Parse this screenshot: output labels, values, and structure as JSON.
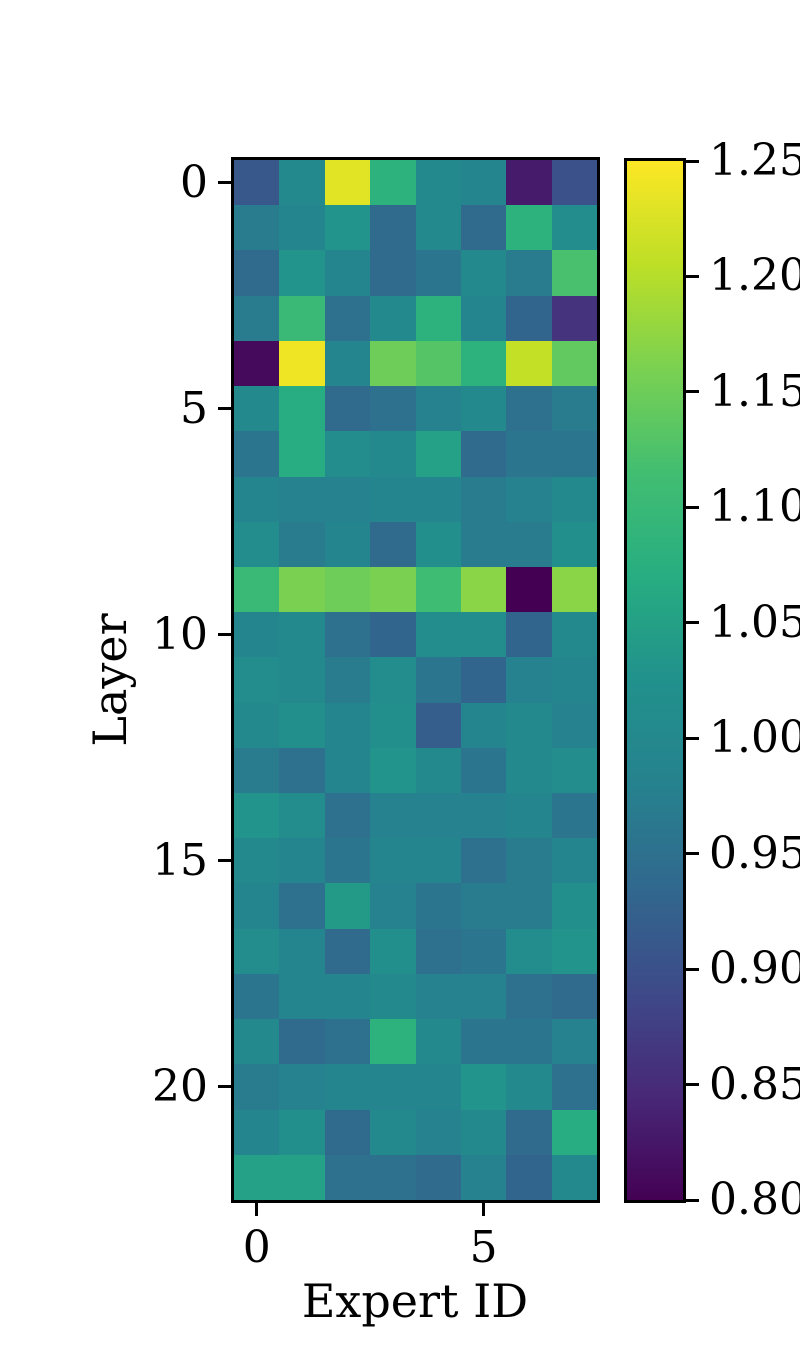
{
  "chart_data": {
    "type": "heatmap",
    "title": "",
    "xlabel": "Expert ID",
    "ylabel": "Layer",
    "n_rows": 23,
    "n_cols": 8,
    "x_range": [
      0,
      7
    ],
    "y_range": [
      0,
      22
    ],
    "colormap": "viridis",
    "vmin": 0.8,
    "vmax": 1.25,
    "grid": false,
    "legend_position": "colorbar-right",
    "xticks": [
      {
        "v": 0,
        "label": "0"
      },
      {
        "v": 5,
        "label": "5"
      }
    ],
    "yticks": [
      {
        "v": 0,
        "label": "0"
      },
      {
        "v": 5,
        "label": "5"
      },
      {
        "v": 10,
        "label": "10"
      },
      {
        "v": 15,
        "label": "15"
      },
      {
        "v": 20,
        "label": "20"
      }
    ],
    "colorbar_ticks": [
      {
        "v": 1.25,
        "label": "1.25"
      },
      {
        "v": 1.2,
        "label": "1.20"
      },
      {
        "v": 1.15,
        "label": "1.15"
      },
      {
        "v": 1.1,
        "label": "1.10"
      },
      {
        "v": 1.05,
        "label": "1.05"
      },
      {
        "v": 1.0,
        "label": "1.00"
      },
      {
        "v": 0.95,
        "label": "0.95"
      },
      {
        "v": 0.9,
        "label": "0.90"
      },
      {
        "v": 0.85,
        "label": "0.85"
      },
      {
        "v": 0.8,
        "label": "0.80"
      }
    ],
    "values": [
      [
        0.91,
        1.0,
        1.23,
        1.08,
        1.0,
        0.99,
        0.83,
        0.9
      ],
      [
        0.97,
        0.99,
        1.03,
        0.94,
        1.0,
        0.94,
        1.08,
        1.01
      ],
      [
        0.94,
        1.03,
        0.99,
        0.94,
        0.96,
        1.0,
        0.97,
        1.12
      ],
      [
        0.97,
        1.1,
        0.95,
        1.0,
        1.08,
        0.99,
        0.93,
        0.86
      ],
      [
        0.81,
        1.24,
        0.99,
        1.15,
        1.13,
        1.08,
        1.21,
        1.14
      ],
      [
        1.0,
        1.07,
        0.94,
        0.95,
        0.98,
        1.0,
        0.95,
        0.97
      ],
      [
        0.96,
        1.07,
        1.01,
        1.0,
        1.05,
        0.94,
        0.96,
        0.96
      ],
      [
        0.99,
        0.98,
        0.98,
        0.99,
        0.99,
        0.97,
        0.98,
        1.0
      ],
      [
        1.01,
        0.97,
        0.99,
        0.94,
        1.02,
        0.97,
        0.97,
        1.02
      ],
      [
        1.1,
        1.16,
        1.15,
        1.16,
        1.11,
        1.17,
        0.8,
        1.17
      ],
      [
        0.99,
        1.0,
        0.95,
        0.93,
        1.01,
        1.01,
        0.93,
        1.0
      ],
      [
        1.01,
        1.0,
        0.97,
        1.01,
        0.96,
        0.93,
        0.98,
        0.99
      ],
      [
        1.0,
        1.02,
        0.99,
        1.02,
        0.92,
        0.99,
        1.0,
        0.98
      ],
      [
        0.97,
        0.95,
        0.99,
        1.03,
        1.0,
        0.96,
        1.0,
        1.01
      ],
      [
        1.03,
        1.01,
        0.95,
        0.98,
        0.98,
        0.98,
        0.99,
        0.96
      ],
      [
        1.0,
        0.99,
        0.96,
        0.99,
        0.99,
        0.95,
        0.97,
        0.99
      ],
      [
        0.99,
        0.95,
        1.04,
        0.98,
        0.96,
        0.97,
        0.97,
        1.02
      ],
      [
        1.01,
        0.99,
        0.94,
        1.02,
        0.95,
        0.96,
        1.01,
        1.03
      ],
      [
        0.96,
        0.99,
        0.99,
        1.0,
        0.98,
        0.98,
        0.95,
        0.94
      ],
      [
        1.0,
        0.94,
        0.95,
        1.08,
        1.0,
        0.96,
        0.96,
        0.98
      ],
      [
        0.97,
        0.98,
        0.99,
        0.99,
        0.99,
        1.03,
        1.0,
        0.95
      ],
      [
        0.99,
        1.02,
        0.94,
        1.0,
        0.98,
        1.0,
        0.94,
        1.07
      ],
      [
        1.05,
        1.05,
        0.95,
        0.95,
        0.94,
        0.98,
        0.93,
        1.0
      ]
    ],
    "colormap_stops": [
      {
        "t": 0.0,
        "hex": "#440154"
      },
      {
        "t": 0.1,
        "hex": "#482878"
      },
      {
        "t": 0.2,
        "hex": "#3e4a89"
      },
      {
        "t": 0.3,
        "hex": "#31688e"
      },
      {
        "t": 0.4,
        "hex": "#26828e"
      },
      {
        "t": 0.5,
        "hex": "#21918c"
      },
      {
        "t": 0.6,
        "hex": "#27ad81"
      },
      {
        "t": 0.7,
        "hex": "#42be71"
      },
      {
        "t": 0.8,
        "hex": "#7ad151"
      },
      {
        "t": 0.9,
        "hex": "#bddf26"
      },
      {
        "t": 1.0,
        "hex": "#fde725"
      }
    ]
  },
  "colors": {
    "background": "#ffffff",
    "axis": "#000000",
    "text": "#000000"
  }
}
